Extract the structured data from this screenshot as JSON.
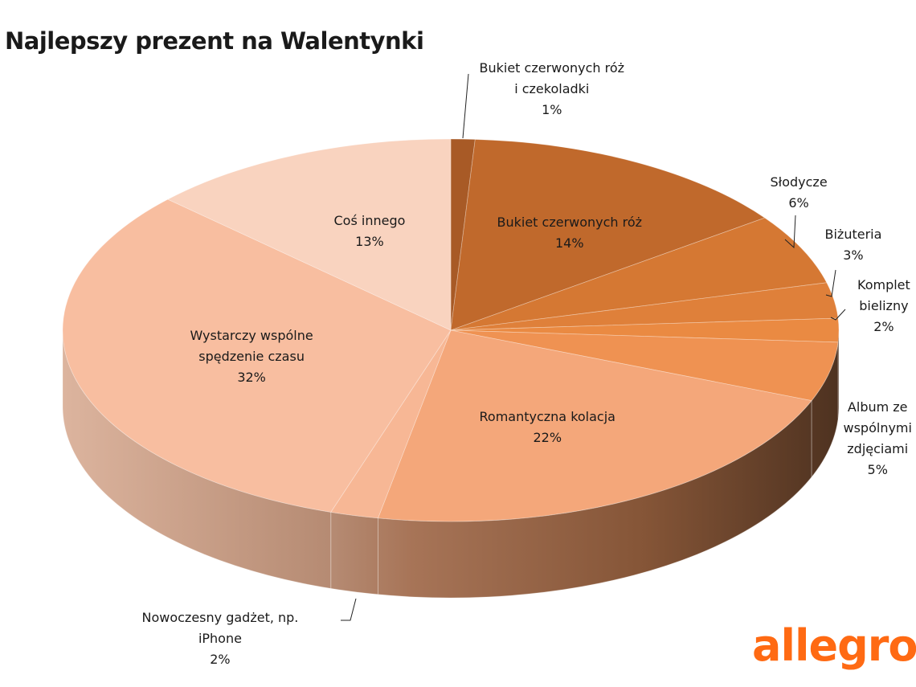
{
  "chart_data": {
    "type": "pie",
    "title": "Najlepszy prezent na Walentynki",
    "slices": [
      {
        "label": [
          "Bukiet czerwonych róż",
          "i czekoladki"
        ],
        "value": 1,
        "display": "1%",
        "color": "#a85a26"
      },
      {
        "label": [
          "Bukiet czerwonych róż"
        ],
        "value": 14,
        "display": "14%",
        "color": "#c0692c"
      },
      {
        "label": [
          "Słodycze"
        ],
        "value": 6,
        "display": "6%",
        "color": "#d57833"
      },
      {
        "label": [
          "Biżuteria"
        ],
        "value": 3,
        "display": "3%",
        "color": "#df803a"
      },
      {
        "label": [
          "Komplet",
          "bielizny"
        ],
        "value": 2,
        "display": "2%",
        "color": "#ea8a42"
      },
      {
        "label": [
          "Album ze",
          "wspólnymi",
          "zdjęciami"
        ],
        "value": 5,
        "display": "5%",
        "color": "#ef9252"
      },
      {
        "label": [
          "Romantyczna kolacja"
        ],
        "value": 22,
        "display": "22%",
        "color": "#f4a77a"
      },
      {
        "label": [
          "Nowoczesny gadżet, np.",
          "iPhone"
        ],
        "value": 2,
        "display": "2%",
        "color": "#f7b795"
      },
      {
        "label": [
          "Wystarczy wspólne",
          "spędzenie czasu"
        ],
        "value": 32,
        "display": "32%",
        "color": "#f8bea0"
      },
      {
        "label": [
          "Coś innego"
        ],
        "value": 13,
        "display": "13%",
        "color": "#f9d3bf"
      }
    ]
  },
  "logo": {
    "text": "allegro"
  }
}
